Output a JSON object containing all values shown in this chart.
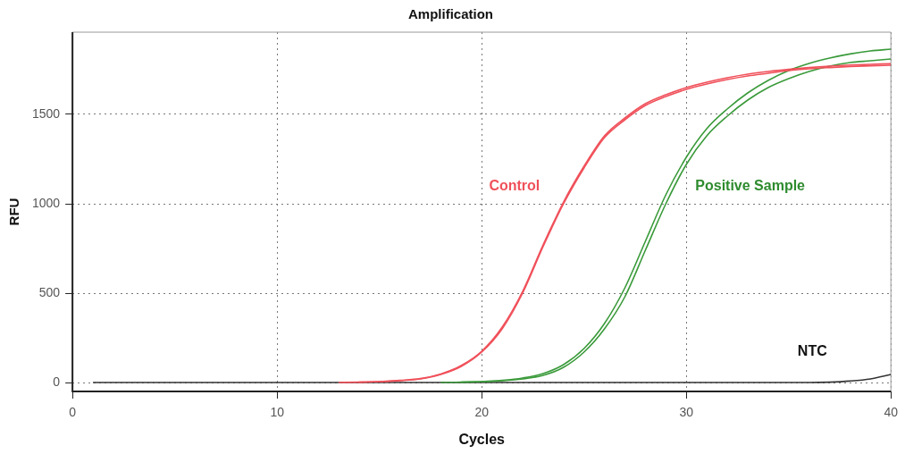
{
  "chart_data": {
    "type": "line",
    "title": "Amplification",
    "xlabel": "Cycles",
    "ylabel": "RFU",
    "x": [
      1,
      2,
      3,
      4,
      5,
      6,
      7,
      8,
      9,
      10,
      11,
      12,
      13,
      14,
      15,
      16,
      17,
      18,
      19,
      20,
      21,
      22,
      23,
      24,
      25,
      26,
      27,
      28,
      29,
      30,
      31,
      32,
      33,
      34,
      35,
      36,
      37,
      38,
      39,
      40
    ],
    "series": [
      {
        "color": "#f0505a",
        "values": [
          null,
          null,
          null,
          null,
          null,
          null,
          null,
          null,
          null,
          null,
          null,
          null,
          0,
          2,
          5,
          10,
          20,
          45,
          90,
          170,
          300,
          500,
          760,
          1000,
          1200,
          1370,
          1470,
          1550,
          1600,
          1640,
          1670,
          1695,
          1715,
          1730,
          1745,
          1755,
          1762,
          1768,
          1772,
          1775
        ]
      },
      {
        "color": "#f0505a",
        "values": [
          null,
          null,
          null,
          null,
          null,
          null,
          null,
          null,
          null,
          null,
          null,
          null,
          null,
          2,
          5,
          12,
          22,
          48,
          95,
          175,
          310,
          510,
          770,
          1010,
          1210,
          1380,
          1480,
          1560,
          1610,
          1650,
          1680,
          1705,
          1725,
          1740,
          1752,
          1762,
          1770,
          1776,
          1780,
          1784
        ]
      },
      {
        "color": "#3a9a3a",
        "values": [
          null,
          null,
          null,
          null,
          null,
          null,
          null,
          null,
          null,
          null,
          null,
          null,
          null,
          null,
          null,
          null,
          null,
          0,
          2,
          5,
          12,
          25,
          50,
          100,
          190,
          330,
          530,
          790,
          1050,
          1260,
          1420,
          1530,
          1620,
          1690,
          1745,
          1785,
          1815,
          1838,
          1855,
          1865
        ]
      },
      {
        "color": "#3a9a3a",
        "values": [
          null,
          null,
          null,
          null,
          null,
          null,
          null,
          null,
          null,
          null,
          null,
          null,
          null,
          null,
          null,
          null,
          null,
          null,
          2,
          5,
          10,
          20,
          40,
          85,
          170,
          300,
          480,
          740,
          1000,
          1220,
          1380,
          1490,
          1580,
          1650,
          1700,
          1740,
          1770,
          1790,
          1800,
          1810
        ]
      },
      {
        "color": "#333333",
        "values": [
          0,
          0,
          0,
          0,
          0,
          0,
          0,
          0,
          0,
          0,
          0,
          0,
          0,
          0,
          0,
          0,
          0,
          0,
          0,
          0,
          0,
          0,
          0,
          0,
          0,
          0,
          0,
          0,
          0,
          0,
          0,
          0,
          0,
          0,
          0,
          0,
          2,
          8,
          20,
          45
        ]
      }
    ],
    "xlim": [
      0,
      40
    ],
    "xticks": [
      0,
      10,
      20,
      30,
      40
    ],
    "ylim": [
      -50,
      1960
    ],
    "yticks": [
      0,
      500,
      1000,
      1500
    ],
    "grid": true,
    "legend": false,
    "marker": "none",
    "line_style": "solid",
    "annotations": [
      "Control",
      "Positive Sample",
      "NTC"
    ]
  }
}
